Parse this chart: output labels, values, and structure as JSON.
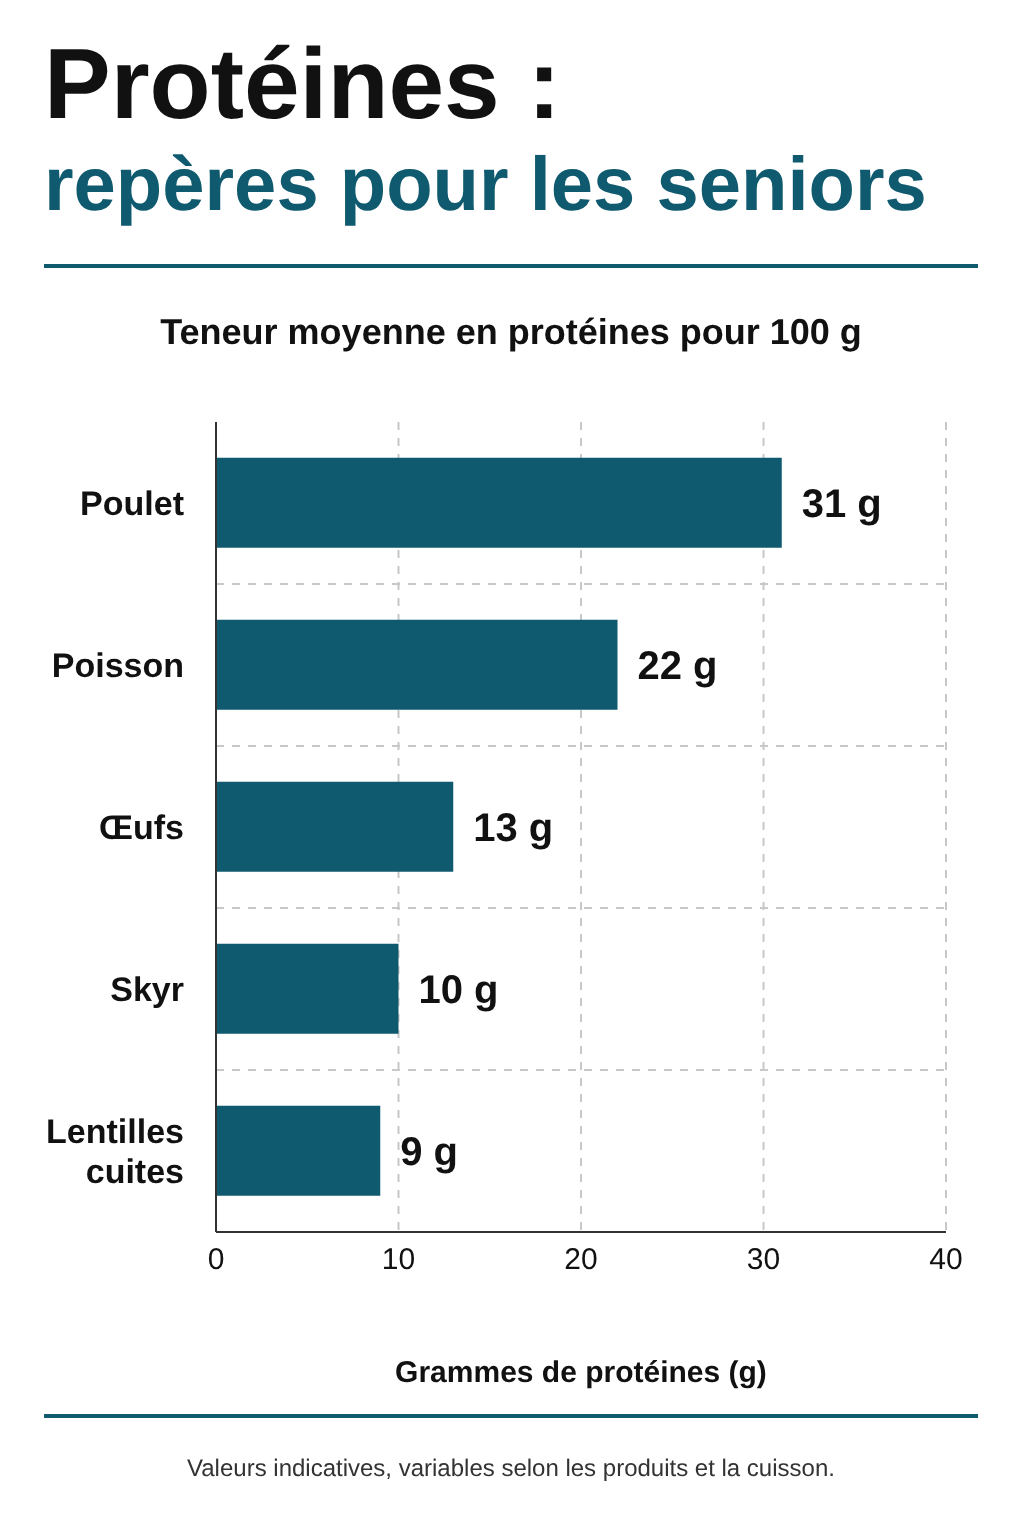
{
  "chart_data": {
    "type": "bar",
    "orientation": "horizontal",
    "title": "Protéines :",
    "subtitle": "repères pour les seniors",
    "annotations": [
      "Teneur moyenne en protéines pour 100 g",
      "Valeurs indicatives, variables selon les produits et la cuisson."
    ],
    "categories": [
      "Poulet",
      "Poisson",
      "Œufs",
      "Skyr",
      "Lentilles cuites"
    ],
    "values": [
      31,
      22,
      13,
      10,
      9
    ],
    "value_labels": [
      "31 g",
      "22 g",
      "13 g",
      "10 g",
      "9 g"
    ],
    "color": "#0f5a6e",
    "xlabel": "Grammes de protéines (g)",
    "xlim": [
      0,
      40
    ],
    "xticks": [
      0,
      10,
      20,
      30,
      40
    ],
    "grid": true
  }
}
